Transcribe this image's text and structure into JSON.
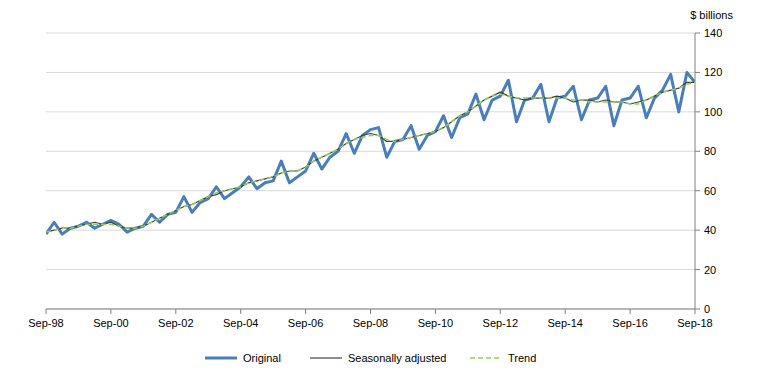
{
  "chart_data": {
    "type": "line",
    "y_label": "$ billions",
    "categories": [
      "Sep-98",
      null,
      null,
      null,
      null,
      null,
      null,
      null,
      "Sep-00",
      null,
      null,
      null,
      null,
      null,
      null,
      null,
      "Sep-02",
      null,
      null,
      null,
      null,
      null,
      null,
      null,
      "Sep-04",
      null,
      null,
      null,
      null,
      null,
      null,
      null,
      "Sep-06",
      null,
      null,
      null,
      null,
      null,
      null,
      null,
      "Sep-08",
      null,
      null,
      null,
      null,
      null,
      null,
      null,
      "Sep-10",
      null,
      null,
      null,
      null,
      null,
      null,
      null,
      "Sep-12",
      null,
      null,
      null,
      null,
      null,
      null,
      null,
      "Sep-14",
      null,
      null,
      null,
      null,
      null,
      null,
      null,
      "Sep-16",
      null,
      null,
      null,
      null,
      null,
      null,
      null,
      "Sep-18"
    ],
    "series": [
      {
        "name": "Original",
        "color": "#4a7ebb",
        "line_style": "solid",
        "values": [
          38,
          44,
          38,
          41,
          42,
          44,
          41,
          43,
          45,
          43,
          39,
          41,
          42,
          48,
          44,
          48,
          49,
          57,
          49,
          54,
          56,
          62,
          56,
          59,
          62,
          67,
          61,
          64,
          65,
          75,
          64,
          67,
          70,
          79,
          71,
          77,
          80,
          89,
          79,
          88,
          91,
          92,
          77,
          85,
          86,
          93,
          81,
          88,
          90,
          98,
          87,
          97,
          99,
          109,
          96,
          106,
          108,
          116,
          95,
          106,
          107,
          114,
          95,
          107,
          108,
          113,
          96,
          106,
          107,
          113,
          93,
          106,
          107,
          113,
          97,
          107,
          111,
          119,
          100,
          120,
          115
        ]
      },
      {
        "name": "Seasonally adjusted",
        "color": "#404040",
        "line_style": "solid",
        "values": [
          39,
          40,
          41,
          41,
          42,
          43,
          44,
          43,
          44,
          42,
          41,
          41,
          42,
          44,
          46,
          48,
          50,
          52,
          53,
          55,
          57,
          58,
          60,
          61,
          62,
          64,
          65,
          66,
          67,
          69,
          70,
          70,
          72,
          75,
          77,
          79,
          81,
          84,
          86,
          88,
          89,
          88,
          85,
          85,
          86,
          87,
          88,
          89,
          90,
          92,
          95,
          98,
          100,
          103,
          106,
          108,
          110,
          108,
          107,
          106,
          107,
          107,
          107,
          108,
          107,
          105,
          106,
          106,
          105,
          106,
          105,
          105,
          104,
          105,
          106,
          108,
          110,
          111,
          112,
          115,
          115
        ]
      },
      {
        "name": "Trend",
        "color": "#92d050",
        "line_style": "dashed",
        "values": [
          39,
          40,
          41,
          41,
          42,
          43,
          43,
          43,
          43,
          42,
          41,
          41,
          42,
          44,
          46,
          48,
          50,
          52,
          53,
          55,
          57,
          59,
          60,
          61,
          62,
          64,
          65,
          66,
          67,
          69,
          70,
          70,
          72,
          75,
          77,
          79,
          81,
          84,
          86,
          87,
          88,
          88,
          86,
          85,
          86,
          87,
          88,
          89,
          90,
          92,
          95,
          98,
          100,
          103,
          106,
          108,
          109,
          108,
          107,
          107,
          107,
          107,
          107,
          107,
          107,
          106,
          106,
          105,
          105,
          105,
          105,
          105,
          104,
          104,
          106,
          108,
          110,
          111,
          112,
          114,
          115
        ]
      }
    ],
    "ylim": [
      0,
      140
    ],
    "yticks": [
      0,
      20,
      40,
      60,
      80,
      100,
      120,
      140
    ],
    "grid": true,
    "legend": "bottom"
  }
}
